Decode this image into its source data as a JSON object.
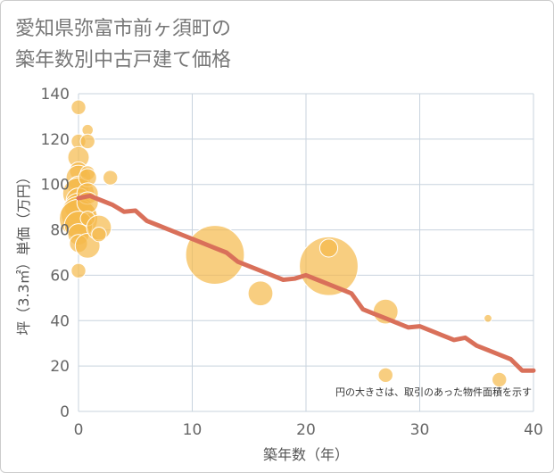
{
  "chart_data": {
    "type": "scatter",
    "title": "愛知県弥富市前ヶ須町の\n築年数別中古戸建て価格",
    "xlabel": "築年数（年）",
    "ylabel": "坪（3.3㎡）単価（万円）",
    "xlim": [
      0,
      40
    ],
    "ylim": [
      0,
      140
    ],
    "xticks": [
      0,
      10,
      20,
      30,
      40
    ],
    "yticks": [
      0,
      20,
      40,
      60,
      80,
      100,
      120,
      140
    ],
    "grid": true,
    "annotation": "円の大きさは、取引のあった物件面積を示す",
    "colors": {
      "bubble": "#f5b94a",
      "trend": "#d9705a",
      "grid": "#c8d3de"
    },
    "bubbles": [
      {
        "x": 0,
        "y": 134,
        "size": 3
      },
      {
        "x": 0,
        "y": 119,
        "size": 3
      },
      {
        "x": 0,
        "y": 112,
        "size": 5
      },
      {
        "x": 0,
        "y": 106,
        "size": 4
      },
      {
        "x": 0,
        "y": 103,
        "size": 6
      },
      {
        "x": 0,
        "y": 99,
        "size": 5
      },
      {
        "x": 0,
        "y": 96,
        "size": 8
      },
      {
        "x": 0,
        "y": 93,
        "size": 6
      },
      {
        "x": 0,
        "y": 90,
        "size": 7
      },
      {
        "x": 0,
        "y": 87,
        "size": 9
      },
      {
        "x": 0,
        "y": 85,
        "size": 10
      },
      {
        "x": 0,
        "y": 82,
        "size": 7
      },
      {
        "x": 0,
        "y": 78,
        "size": 5
      },
      {
        "x": 0,
        "y": 74,
        "size": 4
      },
      {
        "x": 0,
        "y": 62,
        "size": 3
      },
      {
        "x": 0.8,
        "y": 124,
        "size": 2
      },
      {
        "x": 0.8,
        "y": 119,
        "size": 3
      },
      {
        "x": 0.8,
        "y": 105,
        "size": 3
      },
      {
        "x": 0.8,
        "y": 103,
        "size": 4
      },
      {
        "x": 0.8,
        "y": 96,
        "size": 5
      },
      {
        "x": 0.8,
        "y": 92,
        "size": 5
      },
      {
        "x": 0.8,
        "y": 85,
        "size": 3
      },
      {
        "x": 0.8,
        "y": 73,
        "size": 6
      },
      {
        "x": 1.8,
        "y": 81,
        "size": 6
      },
      {
        "x": 1.8,
        "y": 78,
        "size": 3
      },
      {
        "x": 2.8,
        "y": 103,
        "size": 3
      },
      {
        "x": 12,
        "y": 69,
        "size": 16
      },
      {
        "x": 16,
        "y": 52,
        "size": 6
      },
      {
        "x": 22,
        "y": 64,
        "size": 16
      },
      {
        "x": 22,
        "y": 72,
        "size": 4
      },
      {
        "x": 27,
        "y": 44,
        "size": 6
      },
      {
        "x": 27,
        "y": 16,
        "size": 3
      },
      {
        "x": 36,
        "y": 41,
        "size": 1
      },
      {
        "x": 37,
        "y": 14,
        "size": 3
      }
    ],
    "trend": {
      "x": [
        0,
        1,
        2,
        3,
        4,
        5,
        6,
        7,
        8,
        9,
        10,
        11,
        12,
        13,
        14,
        15,
        16,
        17,
        18,
        19,
        20,
        21,
        22,
        23,
        24,
        25,
        26,
        27,
        28,
        29,
        30,
        31,
        32,
        33,
        34,
        35,
        36,
        37,
        38,
        39,
        40
      ],
      "y": [
        94,
        95,
        93,
        91,
        88,
        88.5,
        84,
        82,
        80,
        78,
        76,
        74,
        72,
        70,
        66,
        64,
        62,
        60,
        58,
        58.5,
        60,
        58,
        56,
        54,
        52,
        45,
        43,
        41,
        39,
        37,
        37.5,
        35.5,
        33.5,
        31.5,
        32.5,
        29,
        27,
        25,
        23,
        18,
        18
      ]
    }
  }
}
